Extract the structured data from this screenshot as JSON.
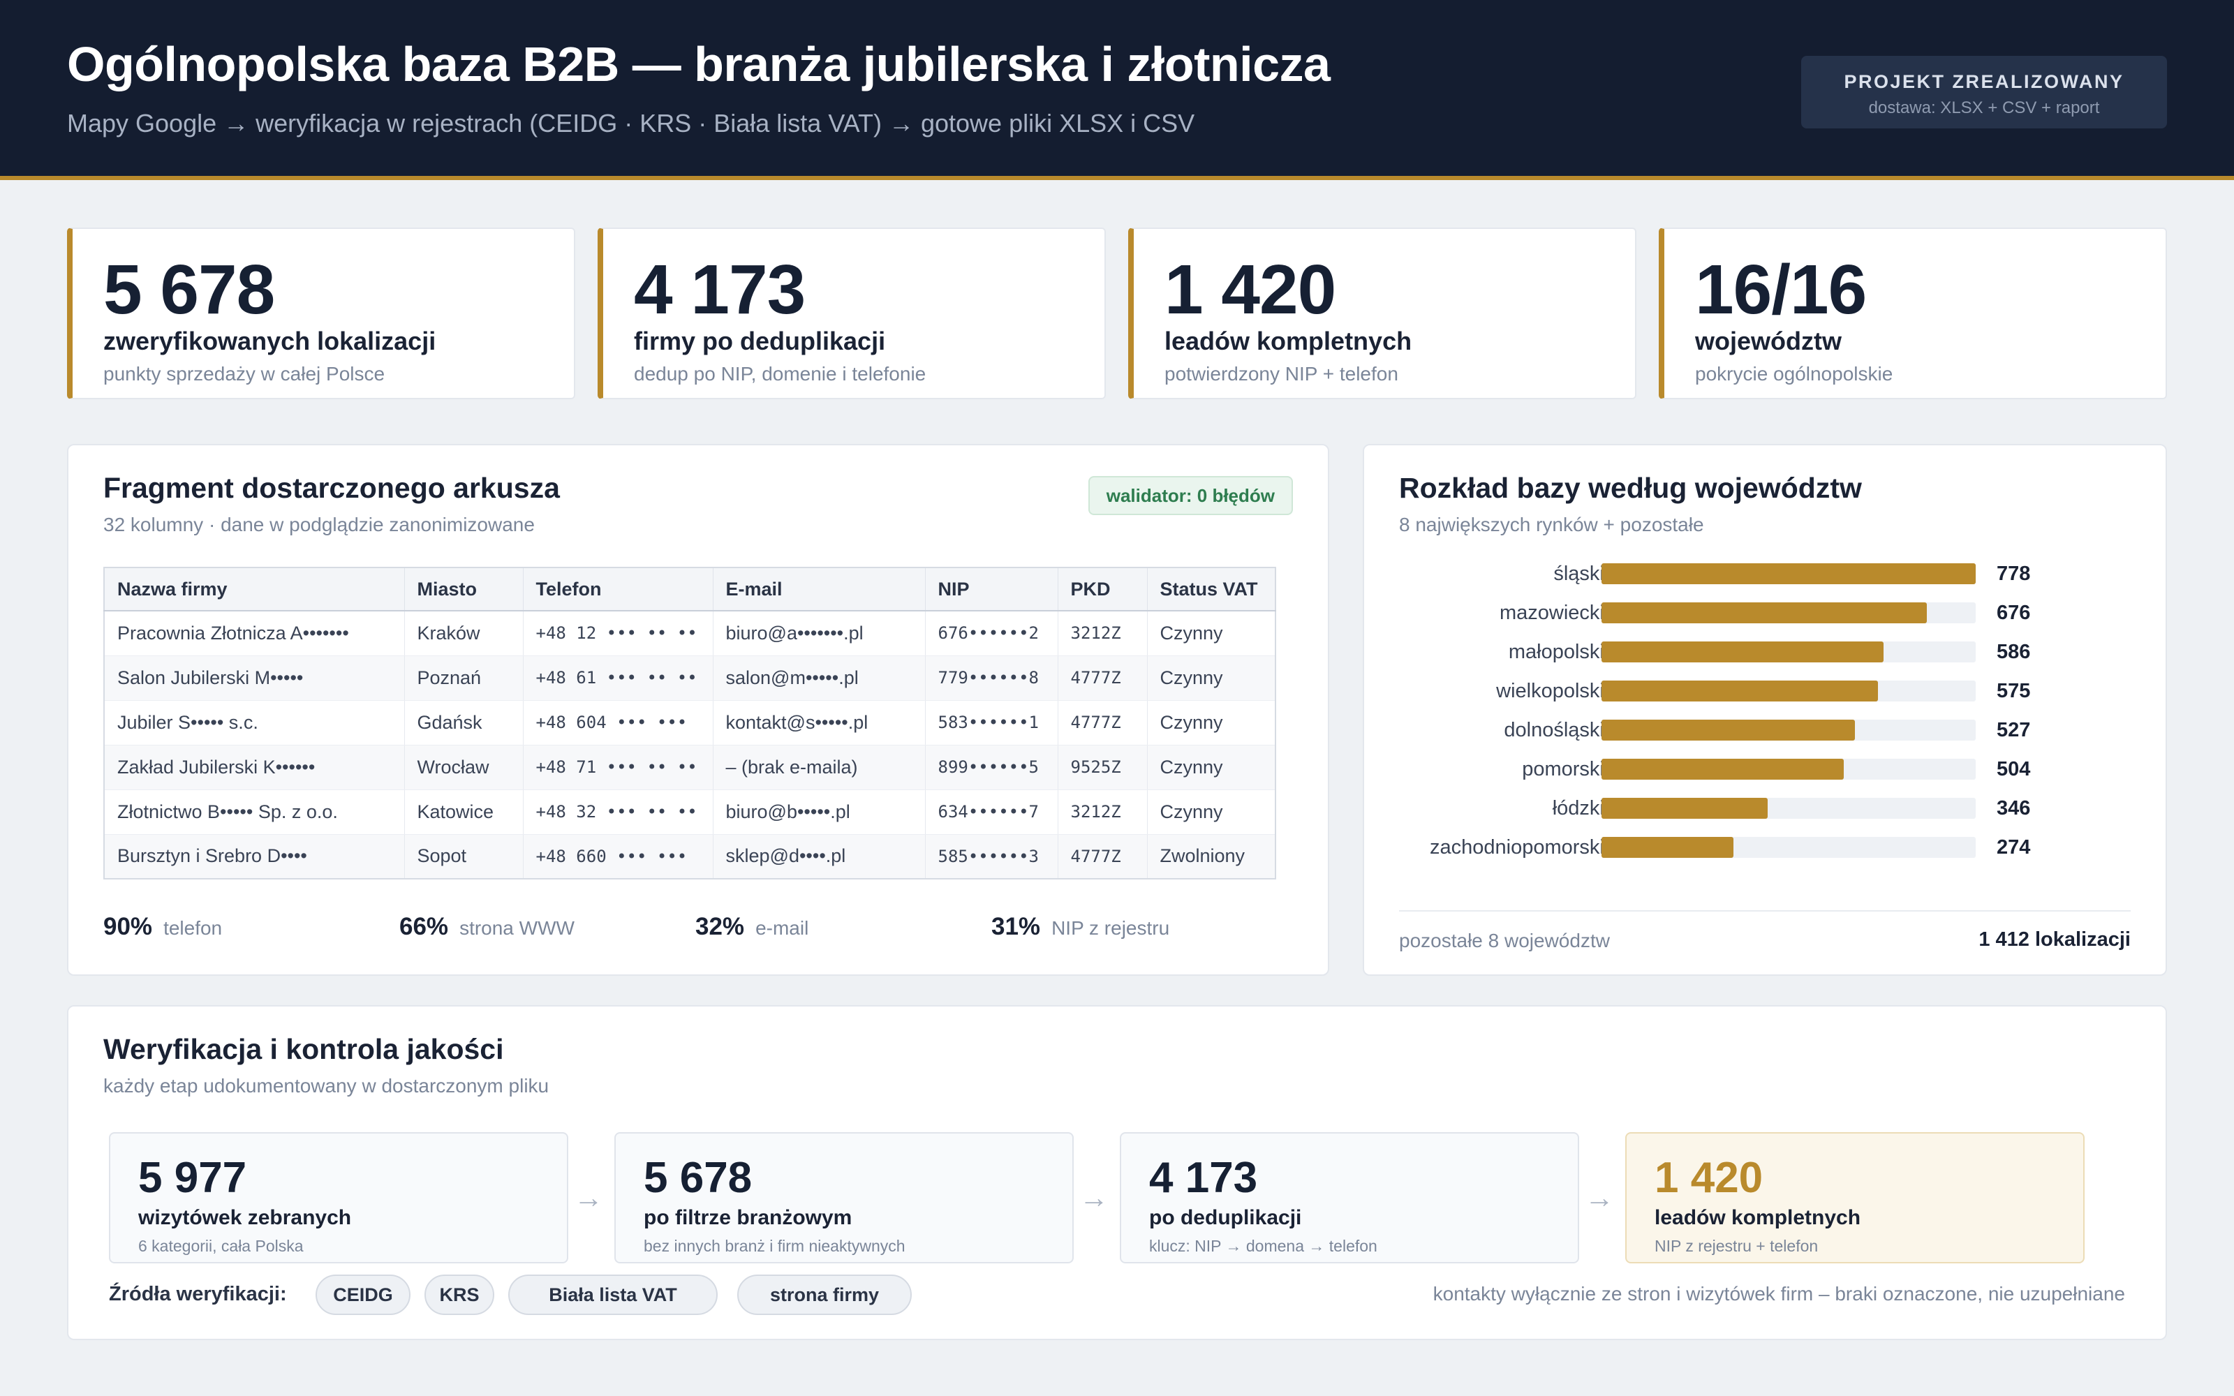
{
  "header": {
    "title": "Ogólnopolska baza B2B — branża jubilerska i złotnicza",
    "subtitle": "Mapy Google → weryfikacja w rejestrach (CEIDG · KRS · Biała lista VAT) → gotowe pliki XLSX i CSV",
    "badge_title": "PROJEKT ZREALIZOWANY",
    "badge_sub": "dostawa: XLSX + CSV + raport"
  },
  "stats": [
    {
      "value": "5 678",
      "label": "zweryfikowanych lokalizacji",
      "sub": "punkty sprzedaży w całej Polsce"
    },
    {
      "value": "4 173",
      "label": "firmy po deduplikacji",
      "sub": "dedup po NIP, domenie i telefonie"
    },
    {
      "value": "1 420",
      "label": "leadów kompletnych",
      "sub": "potwierdzony NIP + telefon"
    },
    {
      "value": "16/16",
      "label": "województw",
      "sub": "pokrycie ogólnopolskie"
    }
  ],
  "sheet": {
    "title": "Fragment dostarczonego arkusza",
    "subtitle": "32 kolumny · dane w podglądzie zanonimizowane",
    "validator": "walidator: 0 błędów",
    "columns": [
      "Nazwa firmy",
      "Miasto",
      "Telefon",
      "E-mail",
      "NIP",
      "PKD",
      "Status VAT"
    ],
    "rows": [
      [
        "Pracownia Złotnicza A•••••••",
        "Kraków",
        "+48 12 ••• •• ••",
        "biuro@a•••••••.pl",
        "676••••••2",
        "3212Z",
        "Czynny"
      ],
      [
        "Salon Jubilerski M•••••",
        "Poznań",
        "+48 61 ••• •• ••",
        "salon@m•••••.pl",
        "779••••••8",
        "4777Z",
        "Czynny"
      ],
      [
        "Jubiler S••••• s.c.",
        "Gdańsk",
        "+48 604 ••• •••",
        "kontakt@s•••••.pl",
        "583••••••1",
        "4777Z",
        "Czynny"
      ],
      [
        "Zakład Jubilerski K••••••",
        "Wrocław",
        "+48 71 ••• •• ••",
        "– (brak e-maila)",
        "899••••••5",
        "9525Z",
        "Czynny"
      ],
      [
        "Złotnictwo B••••• Sp. z o.o.",
        "Katowice",
        "+48 32 ••• •• ••",
        "biuro@b•••••.pl",
        "634••••••7",
        "3212Z",
        "Czynny"
      ],
      [
        "Bursztyn i Srebro D••••",
        "Sopot",
        "+48 660 ••• •••",
        "sklep@d••••.pl",
        "585••••••3",
        "4777Z",
        "Zwolniony"
      ]
    ],
    "coverage": [
      {
        "value": "90%",
        "label": "telefon"
      },
      {
        "value": "66%",
        "label": "strona WWW"
      },
      {
        "value": "32%",
        "label": "e-mail"
      },
      {
        "value": "31%",
        "label": "NIP z rejestru"
      }
    ]
  },
  "regions": {
    "title": "Rozkład bazy według województw",
    "subtitle": "8 największych rynków + pozostałe",
    "rest_label": "pozostałe 8 województw",
    "rest_value": "1 412 lokalizacji"
  },
  "chart_data": {
    "type": "bar",
    "orientation": "horizontal",
    "categories": [
      "śląskie",
      "mazowieckie",
      "małopolskie",
      "wielkopolskie",
      "dolnośląskie",
      "pomorskie",
      "łódzkie",
      "zachodniopomorskie"
    ],
    "values": [
      778,
      676,
      586,
      575,
      527,
      504,
      346,
      274
    ],
    "xlim": [
      0,
      778
    ],
    "grid": false,
    "bar_color": "#b98a2c"
  },
  "quality": {
    "title": "Weryfikacja i kontrola jakości",
    "subtitle": "każdy etap udokumentowany w dostarczonym pliku",
    "steps": [
      {
        "value": "5 977",
        "label": "wizytówek zebranych",
        "sub": "6 kategorii, cała Polska"
      },
      {
        "value": "5 678",
        "label": "po filtrze branżowym",
        "sub": "bez innych branż i firm nieaktywnych"
      },
      {
        "value": "4 173",
        "label": "po deduplikacji",
        "sub": "klucz: NIP → domena → telefon"
      },
      {
        "value": "1 420",
        "label": "leadów kompletnych",
        "sub": "NIP z rejestru + telefon"
      }
    ],
    "arrow": "→",
    "sources_label": "Źródła weryfikacji:",
    "sources": [
      "CEIDG",
      "KRS",
      "Biała lista VAT",
      "strona firmy"
    ],
    "note": "kontakty wyłącznie ze stron i wizytówek firm – braki oznaczone, nie uzupełniane"
  },
  "colors": {
    "accent": "#b98a2c",
    "header_bg": "#141d30",
    "page_bg": "#eef1f4",
    "ok": "#2e7d4f"
  }
}
